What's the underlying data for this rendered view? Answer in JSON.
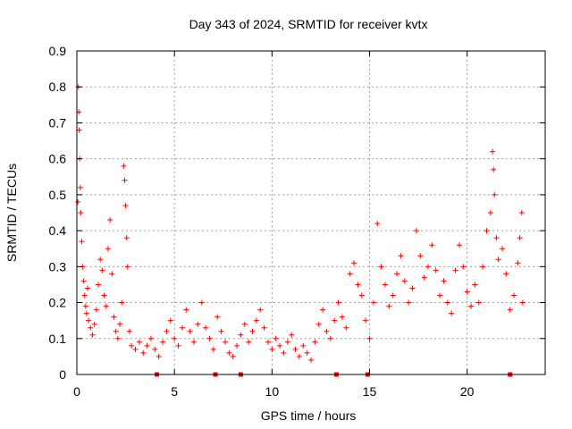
{
  "chart_data": {
    "type": "scatter",
    "title": "Day 343 of 2024, SRMTID for receiver kvtx",
    "xlabel": "GPS time / hours",
    "ylabel": "SRMTID / TECUs",
    "xlim": [
      0,
      24
    ],
    "ylim": [
      0,
      0.9
    ],
    "xticks": [
      0,
      5,
      10,
      15,
      20
    ],
    "yticks": [
      0,
      0.1,
      0.2,
      0.3,
      0.4,
      0.5,
      0.6,
      0.7,
      0.8,
      0.9
    ],
    "grid": true,
    "marker": "+",
    "color": "#ff0000",
    "series": [
      {
        "name": "SRMTID",
        "points": [
          [
            0.05,
            0.48
          ],
          [
            0.08,
            0.8
          ],
          [
            0.1,
            0.73
          ],
          [
            0.12,
            0.68
          ],
          [
            0.15,
            0.6
          ],
          [
            0.18,
            0.52
          ],
          [
            0.2,
            0.45
          ],
          [
            0.25,
            0.37
          ],
          [
            0.3,
            0.3
          ],
          [
            0.35,
            0.26
          ],
          [
            0.4,
            0.22
          ],
          [
            0.45,
            0.19
          ],
          [
            0.5,
            0.17
          ],
          [
            0.55,
            0.24
          ],
          [
            0.6,
            0.15
          ],
          [
            0.7,
            0.13
          ],
          [
            0.8,
            0.11
          ],
          [
            0.9,
            0.14
          ],
          [
            1.0,
            0.18
          ],
          [
            1.1,
            0.25
          ],
          [
            1.2,
            0.32
          ],
          [
            1.3,
            0.29
          ],
          [
            1.4,
            0.22
          ],
          [
            1.5,
            0.19
          ],
          [
            1.6,
            0.35
          ],
          [
            1.7,
            0.43
          ],
          [
            1.8,
            0.28
          ],
          [
            1.9,
            0.16
          ],
          [
            2.0,
            0.12
          ],
          [
            2.1,
            0.1
          ],
          [
            2.2,
            0.14
          ],
          [
            2.3,
            0.2
          ],
          [
            2.4,
            0.58
          ],
          [
            2.45,
            0.54
          ],
          [
            2.5,
            0.47
          ],
          [
            2.55,
            0.38
          ],
          [
            2.6,
            0.3
          ],
          [
            2.7,
            0.12
          ],
          [
            2.8,
            0.08
          ],
          [
            3.0,
            0.07
          ],
          [
            3.2,
            0.09
          ],
          [
            3.4,
            0.06
          ],
          [
            3.6,
            0.08
          ],
          [
            3.8,
            0.1
          ],
          [
            4.0,
            0.07
          ],
          [
            4.2,
            0.05
          ],
          [
            4.4,
            0.09
          ],
          [
            4.6,
            0.12
          ],
          [
            4.8,
            0.15
          ],
          [
            5.0,
            0.1
          ],
          [
            5.2,
            0.08
          ],
          [
            5.4,
            0.13
          ],
          [
            5.6,
            0.18
          ],
          [
            5.8,
            0.12
          ],
          [
            6.0,
            0.09
          ],
          [
            6.2,
            0.14
          ],
          [
            6.4,
            0.2
          ],
          [
            6.6,
            0.13
          ],
          [
            6.8,
            0.1
          ],
          [
            7.0,
            0.07
          ],
          [
            7.2,
            0.16
          ],
          [
            7.4,
            0.12
          ],
          [
            7.6,
            0.09
          ],
          [
            7.8,
            0.06
          ],
          [
            8.0,
            0.05
          ],
          [
            8.2,
            0.08
          ],
          [
            8.4,
            0.11
          ],
          [
            8.6,
            0.14
          ],
          [
            8.8,
            0.09
          ],
          [
            9.0,
            0.12
          ],
          [
            9.2,
            0.15
          ],
          [
            9.4,
            0.18
          ],
          [
            9.6,
            0.13
          ],
          [
            9.8,
            0.09
          ],
          [
            10.0,
            0.07
          ],
          [
            10.2,
            0.1
          ],
          [
            10.4,
            0.08
          ],
          [
            10.6,
            0.06
          ],
          [
            10.8,
            0.09
          ],
          [
            11.0,
            0.11
          ],
          [
            11.2,
            0.07
          ],
          [
            11.4,
            0.05
          ],
          [
            11.6,
            0.08
          ],
          [
            11.8,
            0.06
          ],
          [
            12.0,
            0.04
          ],
          [
            12.2,
            0.09
          ],
          [
            12.4,
            0.14
          ],
          [
            12.6,
            0.18
          ],
          [
            12.8,
            0.12
          ],
          [
            13.0,
            0.1
          ],
          [
            13.2,
            0.15
          ],
          [
            13.4,
            0.2
          ],
          [
            13.6,
            0.16
          ],
          [
            13.8,
            0.13
          ],
          [
            14.0,
            0.28
          ],
          [
            14.2,
            0.31
          ],
          [
            14.4,
            0.25
          ],
          [
            14.6,
            0.22
          ],
          [
            14.8,
            0.15
          ],
          [
            15.0,
            0.1
          ],
          [
            15.2,
            0.2
          ],
          [
            15.4,
            0.42
          ],
          [
            15.6,
            0.3
          ],
          [
            15.8,
            0.25
          ],
          [
            16.0,
            0.19
          ],
          [
            16.2,
            0.22
          ],
          [
            16.4,
            0.28
          ],
          [
            16.6,
            0.33
          ],
          [
            16.8,
            0.26
          ],
          [
            17.0,
            0.2
          ],
          [
            17.2,
            0.24
          ],
          [
            17.4,
            0.4
          ],
          [
            17.6,
            0.33
          ],
          [
            17.8,
            0.27
          ],
          [
            18.0,
            0.3
          ],
          [
            18.2,
            0.36
          ],
          [
            18.4,
            0.29
          ],
          [
            18.6,
            0.22
          ],
          [
            18.8,
            0.26
          ],
          [
            19.0,
            0.2
          ],
          [
            19.2,
            0.17
          ],
          [
            19.4,
            0.29
          ],
          [
            19.6,
            0.36
          ],
          [
            19.8,
            0.3
          ],
          [
            20.0,
            0.23
          ],
          [
            20.2,
            0.19
          ],
          [
            20.4,
            0.25
          ],
          [
            20.6,
            0.2
          ],
          [
            20.8,
            0.3
          ],
          [
            21.0,
            0.4
          ],
          [
            21.2,
            0.45
          ],
          [
            21.3,
            0.62
          ],
          [
            21.35,
            0.57
          ],
          [
            21.4,
            0.5
          ],
          [
            21.5,
            0.38
          ],
          [
            21.6,
            0.32
          ],
          [
            21.8,
            0.35
          ],
          [
            22.0,
            0.28
          ],
          [
            22.2,
            0.18
          ],
          [
            22.4,
            0.22
          ],
          [
            22.6,
            0.31
          ],
          [
            22.7,
            0.38
          ],
          [
            22.8,
            0.45
          ],
          [
            22.85,
            0.2
          ]
        ]
      }
    ],
    "zero_markers_x": [
      4.1,
      7.1,
      8.4,
      13.3,
      14.9,
      22.2
    ]
  }
}
